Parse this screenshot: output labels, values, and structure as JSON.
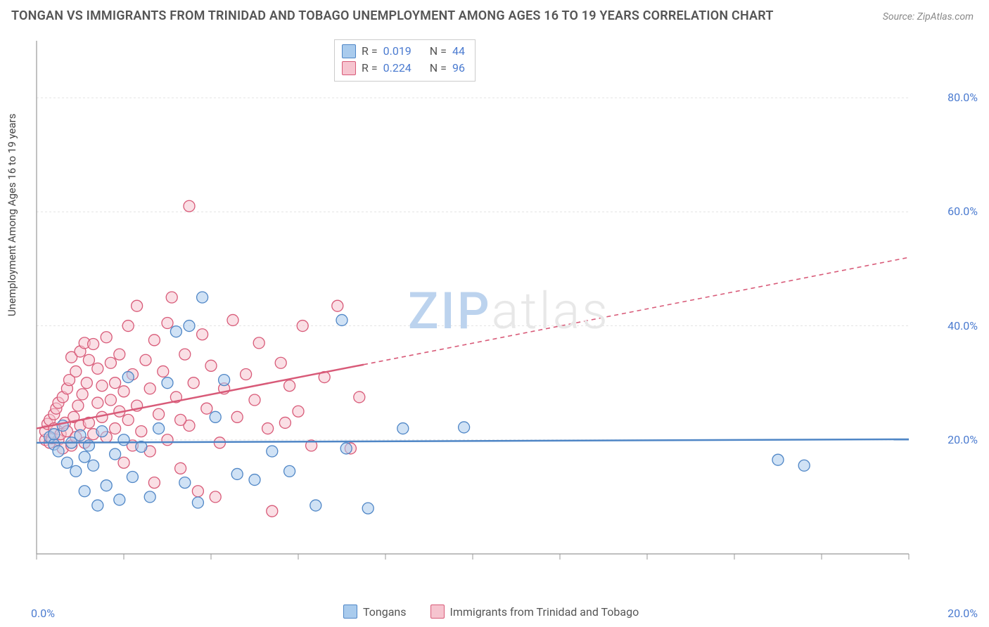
{
  "title": "TONGAN VS IMMIGRANTS FROM TRINIDAD AND TOBAGO UNEMPLOYMENT AMONG AGES 16 TO 19 YEARS CORRELATION CHART",
  "source": "Source: ZipAtlas.com",
  "ylabel": "Unemployment Among Ages 16 to 19 years",
  "watermark": {
    "a": "ZIP",
    "b": "atlas"
  },
  "chart": {
    "type": "scatter",
    "background_color": "#ffffff",
    "grid_color": "#e4e4e4",
    "grid_dash": "3,3",
    "axis_color": "#999999",
    "tick_color": "#999999",
    "x": {
      "min": 0,
      "max": 20,
      "ticks": [
        0,
        2,
        4,
        6,
        8,
        10,
        12,
        14,
        16,
        18,
        20
      ],
      "tick_labels": {
        "0": "0.0%",
        "20": "20.0%"
      }
    },
    "y": {
      "min": 0,
      "max": 90,
      "gridlines": [
        20,
        40,
        60,
        80
      ],
      "tick_labels": {
        "20": "20.0%",
        "40": "40.0%",
        "60": "60.0%",
        "80": "80.0%"
      }
    },
    "marker_radius": 8,
    "marker_opacity": 0.55,
    "line_width": 2.5,
    "dash_pattern": "6,5",
    "series": [
      {
        "key": "tongans",
        "name": "Tongans",
        "R": "0.019",
        "N": "44",
        "color_fill": "#a9cbed",
        "color_stroke": "#4f86c6",
        "trend": {
          "solid_to_x": 20,
          "y_at_0": 19.5,
          "y_at_end": 20.1,
          "y_at_20": 20.1
        },
        "points": [
          [
            0.3,
            20.5
          ],
          [
            0.4,
            19.2
          ],
          [
            0.4,
            21.0
          ],
          [
            0.5,
            18.0
          ],
          [
            0.6,
            22.5
          ],
          [
            0.7,
            16.0
          ],
          [
            0.8,
            19.5
          ],
          [
            0.9,
            14.5
          ],
          [
            1.0,
            20.8
          ],
          [
            1.1,
            17.0
          ],
          [
            1.1,
            11.0
          ],
          [
            1.2,
            19.0
          ],
          [
            1.3,
            15.5
          ],
          [
            1.4,
            8.5
          ],
          [
            1.5,
            21.5
          ],
          [
            1.6,
            12.0
          ],
          [
            1.8,
            17.5
          ],
          [
            1.9,
            9.5
          ],
          [
            2.0,
            20.0
          ],
          [
            2.1,
            31.0
          ],
          [
            2.2,
            13.5
          ],
          [
            2.4,
            18.8
          ],
          [
            2.6,
            10.0
          ],
          [
            2.8,
            22.0
          ],
          [
            3.0,
            30.0
          ],
          [
            3.2,
            39.0
          ],
          [
            3.4,
            12.5
          ],
          [
            3.5,
            40.0
          ],
          [
            3.7,
            9.0
          ],
          [
            3.8,
            45.0
          ],
          [
            4.1,
            24.0
          ],
          [
            4.3,
            30.5
          ],
          [
            4.6,
            14.0
          ],
          [
            5.0,
            13.0
          ],
          [
            5.4,
            18.0
          ],
          [
            5.8,
            14.5
          ],
          [
            6.4,
            8.5
          ],
          [
            7.1,
            18.5
          ],
          [
            7.6,
            8.0
          ],
          [
            8.4,
            22.0
          ],
          [
            9.8,
            22.2
          ],
          [
            17.0,
            16.5
          ],
          [
            17.6,
            15.5
          ],
          [
            7.0,
            41.0
          ]
        ]
      },
      {
        "key": "trinidad",
        "name": "Immigrants from Trinidad and Tobago",
        "R": "0.224",
        "N": "96",
        "color_fill": "#f6c4cf",
        "color_stroke": "#d85a78",
        "trend": {
          "solid_to_x": 7.5,
          "y_at_0": 22.0,
          "y_at_end": 33.2,
          "y_at_20": 52.0
        },
        "points": [
          [
            0.2,
            20.0
          ],
          [
            0.2,
            21.5
          ],
          [
            0.25,
            22.8
          ],
          [
            0.3,
            19.5
          ],
          [
            0.3,
            23.5
          ],
          [
            0.35,
            20.3
          ],
          [
            0.4,
            24.5
          ],
          [
            0.4,
            22.0
          ],
          [
            0.45,
            25.5
          ],
          [
            0.5,
            20.0
          ],
          [
            0.5,
            26.5
          ],
          [
            0.55,
            21.0
          ],
          [
            0.6,
            18.5
          ],
          [
            0.6,
            27.5
          ],
          [
            0.65,
            23.0
          ],
          [
            0.7,
            29.0
          ],
          [
            0.7,
            21.5
          ],
          [
            0.75,
            30.5
          ],
          [
            0.8,
            19.0
          ],
          [
            0.8,
            34.5
          ],
          [
            0.85,
            24.0
          ],
          [
            0.9,
            32.0
          ],
          [
            0.9,
            20.5
          ],
          [
            0.95,
            26.0
          ],
          [
            1.0,
            22.5
          ],
          [
            1.0,
            35.5
          ],
          [
            1.05,
            28.0
          ],
          [
            1.1,
            19.5
          ],
          [
            1.1,
            37.0
          ],
          [
            1.15,
            30.0
          ],
          [
            1.2,
            23.0
          ],
          [
            1.2,
            34.0
          ],
          [
            1.3,
            21.0
          ],
          [
            1.3,
            36.8
          ],
          [
            1.4,
            26.5
          ],
          [
            1.4,
            32.5
          ],
          [
            1.5,
            24.0
          ],
          [
            1.5,
            29.5
          ],
          [
            1.6,
            20.5
          ],
          [
            1.6,
            38.0
          ],
          [
            1.7,
            27.0
          ],
          [
            1.7,
            33.5
          ],
          [
            1.8,
            22.0
          ],
          [
            1.8,
            30.0
          ],
          [
            1.9,
            25.0
          ],
          [
            1.9,
            35.0
          ],
          [
            2.0,
            16.0
          ],
          [
            2.0,
            28.5
          ],
          [
            2.1,
            23.5
          ],
          [
            2.1,
            40.0
          ],
          [
            2.2,
            19.0
          ],
          [
            2.2,
            31.5
          ],
          [
            2.3,
            26.0
          ],
          [
            2.3,
            43.5
          ],
          [
            2.4,
            21.5
          ],
          [
            2.5,
            34.0
          ],
          [
            2.6,
            18.0
          ],
          [
            2.6,
            29.0
          ],
          [
            2.7,
            12.5
          ],
          [
            2.7,
            37.5
          ],
          [
            2.8,
            24.5
          ],
          [
            2.9,
            32.0
          ],
          [
            3.0,
            20.0
          ],
          [
            3.0,
            40.5
          ],
          [
            3.1,
            45.0
          ],
          [
            3.2,
            27.5
          ],
          [
            3.3,
            15.0
          ],
          [
            3.4,
            35.0
          ],
          [
            3.5,
            22.5
          ],
          [
            3.5,
            61.0
          ],
          [
            3.6,
            30.0
          ],
          [
            3.7,
            11.0
          ],
          [
            3.8,
            38.5
          ],
          [
            3.9,
            25.5
          ],
          [
            4.0,
            33.0
          ],
          [
            4.2,
            19.5
          ],
          [
            4.3,
            29.0
          ],
          [
            4.5,
            41.0
          ],
          [
            4.6,
            24.0
          ],
          [
            4.8,
            31.5
          ],
          [
            5.0,
            27.0
          ],
          [
            5.1,
            37.0
          ],
          [
            5.3,
            22.0
          ],
          [
            5.4,
            7.5
          ],
          [
            5.6,
            33.5
          ],
          [
            5.8,
            29.5
          ],
          [
            6.0,
            25.0
          ],
          [
            6.1,
            40.0
          ],
          [
            6.3,
            19.0
          ],
          [
            6.6,
            31.0
          ],
          [
            6.9,
            43.5
          ],
          [
            7.2,
            18.5
          ],
          [
            7.4,
            27.5
          ],
          [
            5.7,
            23.0
          ],
          [
            4.1,
            10.0
          ],
          [
            3.3,
            23.5
          ]
        ]
      }
    ]
  }
}
